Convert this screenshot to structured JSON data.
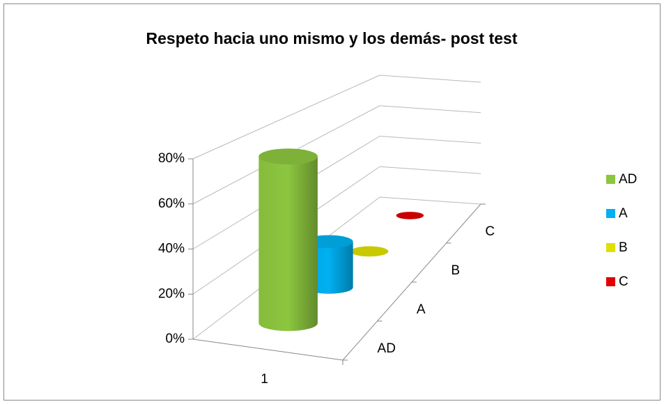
{
  "chart_data": {
    "type": "bar3d_cylinder",
    "title": "Respeto hacia uno mismo y los demás- post test",
    "categories": [
      "1"
    ],
    "series": [
      {
        "name": "AD",
        "color": "#8cc63f",
        "values": [
          77
        ]
      },
      {
        "name": "A",
        "color": "#00b0f0",
        "values": [
          23
        ]
      },
      {
        "name": "B",
        "color": "#e0e000",
        "values": [
          0
        ]
      },
      {
        "name": "C",
        "color": "#e00000",
        "values": [
          0
        ]
      }
    ],
    "ylim": [
      0,
      80
    ],
    "yticks": [
      {
        "value": 0,
        "label": "0%"
      },
      {
        "value": 20,
        "label": "20%"
      },
      {
        "value": 40,
        "label": "40%"
      },
      {
        "value": 60,
        "label": "60%"
      },
      {
        "value": 80,
        "label": "80%"
      }
    ],
    "grid": true,
    "legend": "right"
  }
}
